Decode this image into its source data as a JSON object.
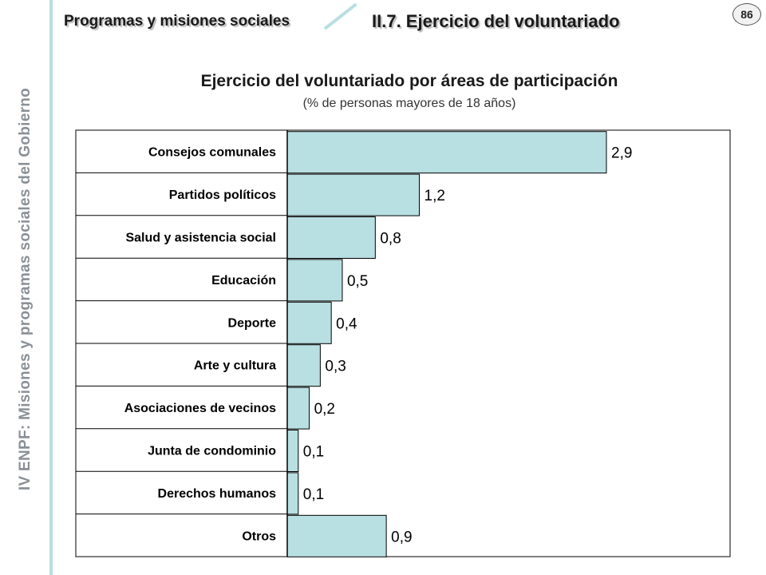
{
  "header": {
    "section": "Programas y misiones sociales",
    "subsection": "II.7. Ejercicio del voluntariado",
    "page_number": "86"
  },
  "sidebar": {
    "text": "IV ENPF: Misiones y programas sociales del Gobierno"
  },
  "colors": {
    "bar_fill": "#b8dfe2",
    "accent_line": "#b8dfe2",
    "border": "#000000"
  },
  "chart_data": {
    "type": "bar",
    "orientation": "horizontal",
    "title": "Ejercicio del voluntariado por áreas de participación",
    "subtitle": "(% de personas mayores de 18 años)",
    "categories": [
      "Consejos comunales",
      "Partidos políticos",
      "Salud y asistencia social",
      "Educación",
      "Deporte",
      "Arte y cultura",
      "Asociaciones de vecinos",
      "Junta de condominio",
      "Derechos humanos",
      "Otros"
    ],
    "values": [
      2.9,
      1.2,
      0.8,
      0.5,
      0.4,
      0.3,
      0.2,
      0.1,
      0.1,
      0.9
    ],
    "value_labels": [
      "2,9",
      "1,2",
      "0,8",
      "0,5",
      "0,4",
      "0,3",
      "0,2",
      "0,1",
      "0,1",
      "0,9"
    ],
    "xlim": [
      0,
      4
    ],
    "grid": false,
    "legend": "none"
  }
}
